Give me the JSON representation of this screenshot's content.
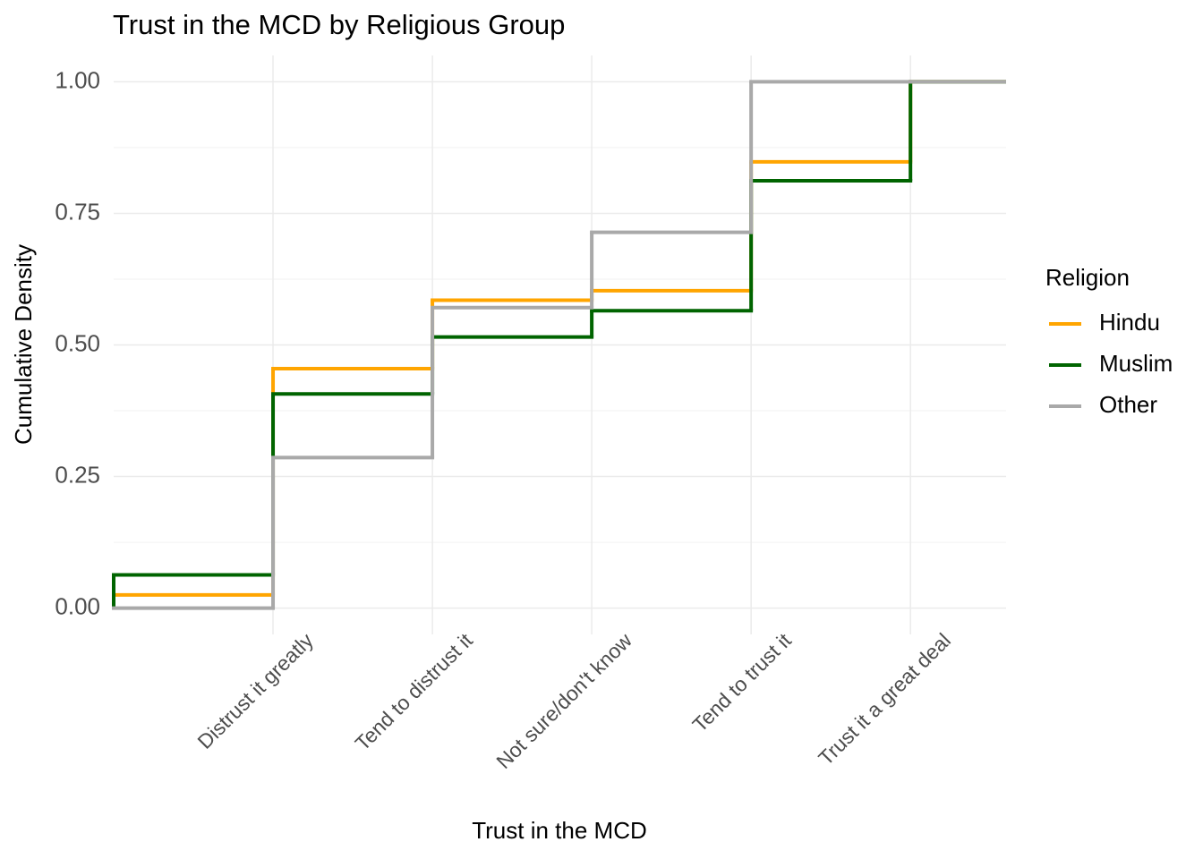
{
  "chart_data": {
    "type": "step",
    "title": "Trust in the MCD by Religious Group",
    "x_label": "Trust in the MCD",
    "y_label": "Cumulative Density",
    "legend_title": "Religion",
    "legend_position": "right",
    "x": [
      0,
      1,
      2,
      3,
      4,
      5
    ],
    "xlim": [
      0,
      5.6
    ],
    "xticks": [
      {
        "value": 1,
        "label": "Distrust it greatly"
      },
      {
        "value": 2,
        "label": "Tend to distrust it"
      },
      {
        "value": 3,
        "label": "Not sure/don't know"
      },
      {
        "value": 4,
        "label": "Tend to trust it"
      },
      {
        "value": 5,
        "label": "Trust it a great deal"
      }
    ],
    "ylim": [
      -0.05,
      1.05
    ],
    "yticks": [
      {
        "value": 0,
        "label": "0.00"
      },
      {
        "value": 0.25,
        "label": "0.25"
      },
      {
        "value": 0.5,
        "label": "0.50"
      },
      {
        "value": 0.75,
        "label": "0.75"
      },
      {
        "value": 1,
        "label": "1.00"
      }
    ],
    "minor_yticks": [
      0.125,
      0.375,
      0.625,
      0.875
    ],
    "grid": true,
    "series": [
      {
        "name": "Hindu",
        "color": "#FFA500",
        "values": [
          0.025,
          0.455,
          0.585,
          0.603,
          0.848,
          1.0
        ]
      },
      {
        "name": "Muslim",
        "color": "#006400",
        "values": [
          0.063,
          0.407,
          0.515,
          0.565,
          0.812,
          1.0
        ]
      },
      {
        "name": "Other",
        "color": "#A9A9A9",
        "values": [
          0,
          0.286,
          0.571,
          0.714,
          1.0,
          1.0
        ]
      }
    ]
  }
}
